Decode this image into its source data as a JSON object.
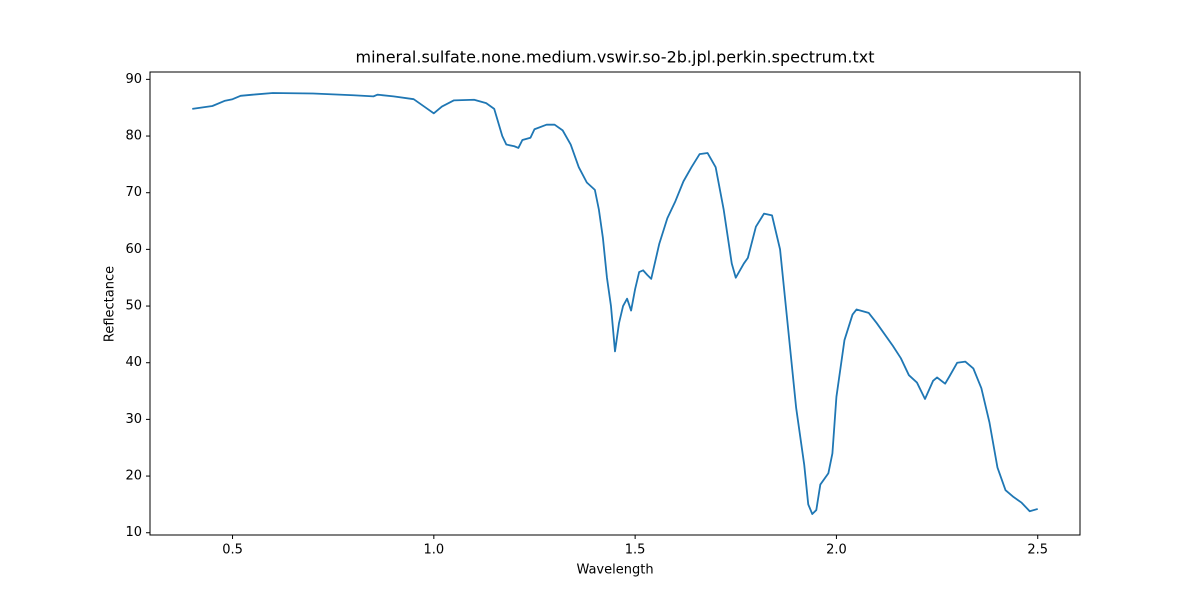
{
  "chart_data": {
    "type": "line",
    "title": "mineral.sulfate.none.medium.vswir.so-2b.jpl.perkin.spectrum.txt",
    "x_label": "Wavelength",
    "y_label": "Reflectance",
    "x": [
      0.4,
      0.45,
      0.48,
      0.5,
      0.52,
      0.55,
      0.6,
      0.7,
      0.8,
      0.85,
      0.86,
      0.9,
      0.95,
      0.98,
      1.0,
      1.02,
      1.05,
      1.1,
      1.13,
      1.15,
      1.17,
      1.18,
      1.2,
      1.21,
      1.22,
      1.24,
      1.25,
      1.28,
      1.3,
      1.32,
      1.34,
      1.36,
      1.38,
      1.4,
      1.41,
      1.42,
      1.43,
      1.44,
      1.45,
      1.46,
      1.47,
      1.48,
      1.49,
      1.5,
      1.51,
      1.52,
      1.53,
      1.54,
      1.56,
      1.58,
      1.6,
      1.62,
      1.64,
      1.66,
      1.68,
      1.7,
      1.72,
      1.74,
      1.75,
      1.77,
      1.78,
      1.8,
      1.82,
      1.84,
      1.86,
      1.88,
      1.9,
      1.92,
      1.93,
      1.94,
      1.95,
      1.96,
      1.98,
      1.99,
      2.0,
      2.02,
      2.04,
      2.05,
      2.08,
      2.1,
      2.14,
      2.16,
      2.18,
      2.2,
      2.22,
      2.24,
      2.25,
      2.27,
      2.28,
      2.3,
      2.32,
      2.34,
      2.36,
      2.38,
      2.4,
      2.42,
      2.44,
      2.46,
      2.48,
      2.5
    ],
    "series": [
      {
        "name": "Reflectance",
        "color": "#1f77b4",
        "values": [
          84.8,
          85.3,
          86.2,
          86.5,
          87.1,
          87.3,
          87.6,
          87.5,
          87.2,
          87.0,
          87.3,
          87.0,
          86.5,
          85.0,
          84.0,
          85.2,
          86.3,
          86.4,
          85.8,
          84.8,
          80.0,
          78.5,
          78.2,
          77.9,
          79.3,
          79.7,
          81.2,
          82.0,
          82.0,
          81.0,
          78.5,
          74.5,
          71.8,
          70.5,
          67.0,
          62.0,
          55.0,
          50.0,
          42.0,
          47.0,
          50.0,
          51.3,
          49.2,
          53.0,
          56.0,
          56.3,
          55.5,
          54.8,
          61.0,
          65.5,
          68.5,
          72.0,
          74.5,
          76.8,
          77.0,
          74.5,
          67.0,
          57.5,
          55.0,
          57.5,
          58.5,
          64.0,
          66.3,
          66.0,
          60.0,
          46.0,
          32.0,
          22.0,
          15.0,
          13.3,
          14.0,
          18.5,
          20.5,
          24.0,
          34.0,
          44.0,
          48.5,
          49.4,
          48.8,
          47.0,
          43.0,
          40.8,
          37.8,
          36.5,
          33.6,
          36.8,
          37.4,
          36.3,
          37.5,
          40.0,
          40.2,
          39.0,
          35.5,
          29.5,
          21.5,
          17.5,
          16.3,
          15.3,
          13.8,
          14.2
        ]
      }
    ],
    "xlim": [
      0.295,
      2.605
    ],
    "ylim": [
      9.6,
      91.3
    ],
    "xticks": [
      0.5,
      {
        "value": 1.0,
        "label": "1.0"
      },
      1.5,
      {
        "value": 2.0,
        "label": "2.0"
      },
      2.5
    ],
    "yticks": [
      10,
      20,
      30,
      40,
      50,
      60,
      70,
      80,
      90
    ],
    "grid": false
  }
}
